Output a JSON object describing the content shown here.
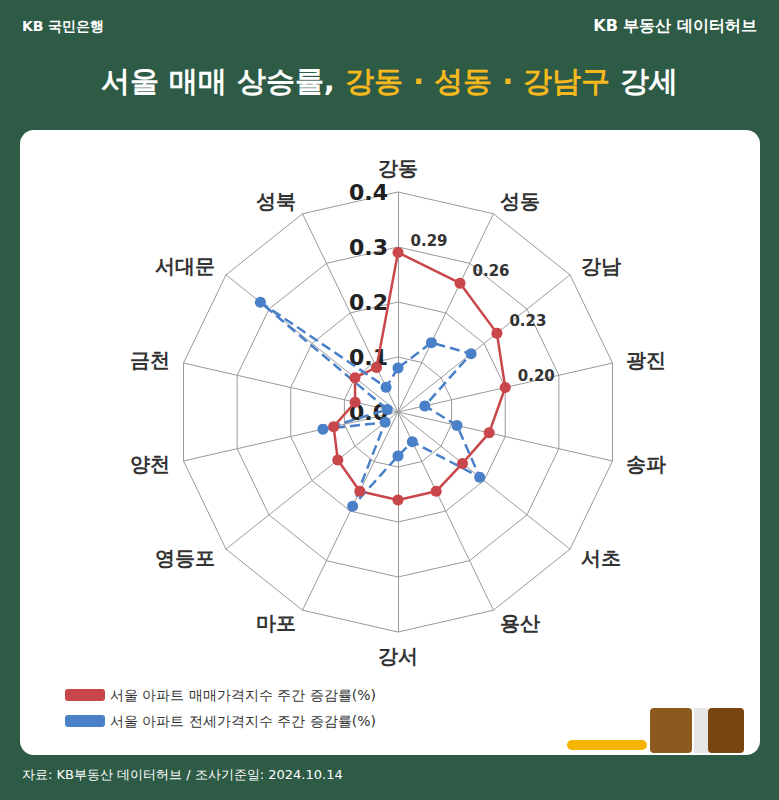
{
  "header_left": "KB 국민은행",
  "header_right": "KB 부동산 데이터허브",
  "source": "자료: KB부동산 데이터허브 / 조사기준일: 2024.10.14",
  "chart_data": {
    "type": "radar",
    "title": "서울 매매 상승률, 강동 · 성동 · 강남구 강세",
    "title_highlight": "강동 · 성동 · 강남구",
    "categories": [
      "강동",
      "성동",
      "강남",
      "광진",
      "송파",
      "서초",
      "용산",
      "강서",
      "마포",
      "영등포",
      "양천",
      "금천",
      "서대문",
      "성북"
    ],
    "ylim": [
      0,
      0.4
    ],
    "yticks": [
      {
        "value": 0,
        "label": "0.0"
      },
      0.1,
      0.2,
      0.3,
      0.4
    ],
    "grid": true,
    "legend": "bottom-left",
    "series": [
      {
        "name": "서울 아파트 매매가격지수 주간 증감률(%)",
        "color": "#c9474a",
        "line_style": "solid",
        "marker": "circle",
        "values": [
          0.29,
          0.26,
          0.23,
          0.2,
          0.17,
          0.15,
          0.16,
          0.16,
          0.16,
          0.14,
          0.12,
          0.08,
          0.1,
          0.09
        ],
        "value_labels": [
          "0.29",
          "0.26",
          "0.23",
          "0.20",
          null,
          null,
          null,
          null,
          null,
          null,
          null,
          null,
          null,
          null
        ]
      },
      {
        "name": "서울 아파트 전세가격지수 주간 증감률(%)",
        "color": "#4a80c8",
        "line_style": "dashed",
        "marker": "circle",
        "values": [
          0.08,
          0.14,
          0.17,
          0.05,
          0.11,
          0.19,
          0.06,
          0.08,
          0.19,
          0.03,
          0.14,
          0.02,
          0.32,
          0.05
        ]
      }
    ]
  }
}
